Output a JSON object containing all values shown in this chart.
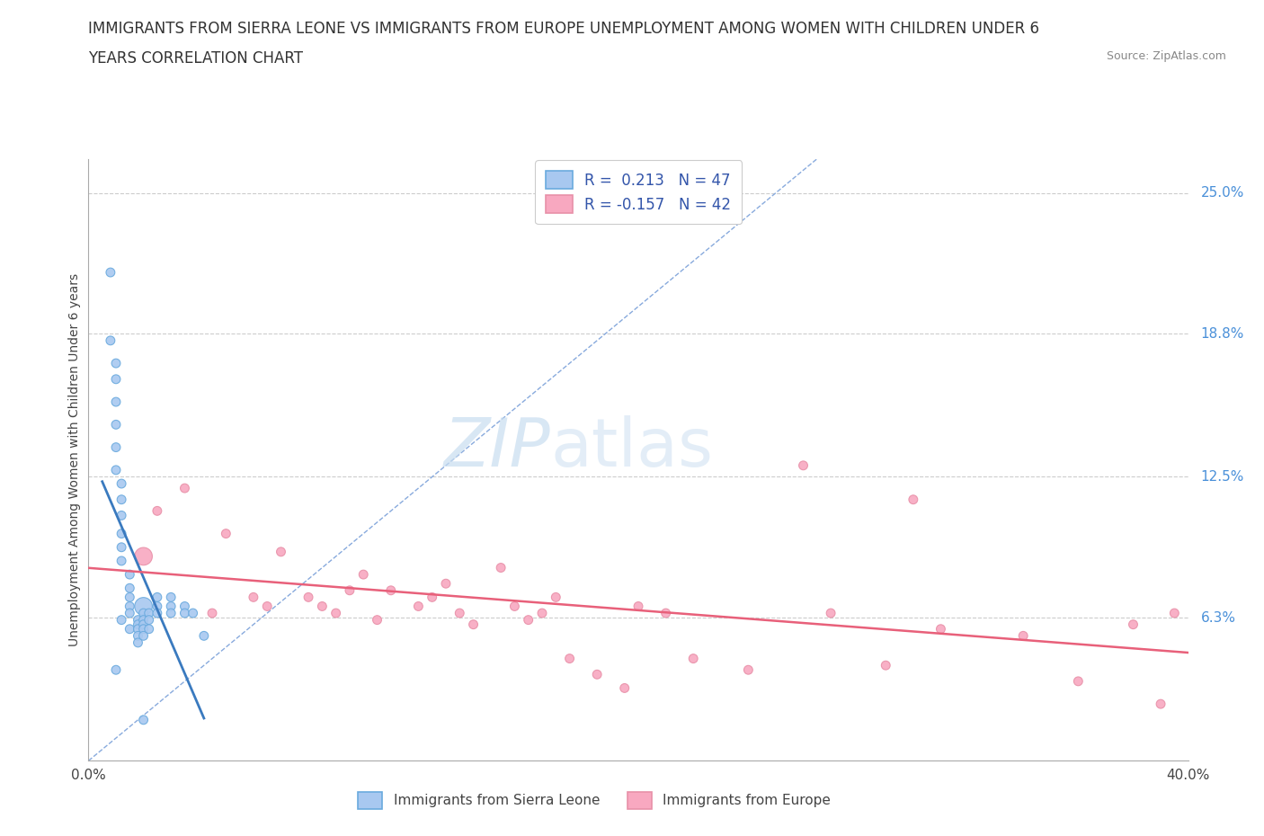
{
  "title_line1": "IMMIGRANTS FROM SIERRA LEONE VS IMMIGRANTS FROM EUROPE UNEMPLOYMENT AMONG WOMEN WITH CHILDREN UNDER 6",
  "title_line2": "YEARS CORRELATION CHART",
  "source_text": "Source: ZipAtlas.com",
  "ylabel": "Unemployment Among Women with Children Under 6 years",
  "xlim": [
    0.0,
    0.4
  ],
  "ylim": [
    0.0,
    0.265
  ],
  "ytick_labels_right": [
    "25.0%",
    "18.8%",
    "12.5%",
    "6.3%"
  ],
  "ytick_vals_right": [
    0.25,
    0.188,
    0.125,
    0.063
  ],
  "watermark_zip": "ZIP",
  "watermark_atlas": "atlas",
  "legend_R1": "R =  0.213   N = 47",
  "legend_R2": "R = -0.157   N = 42",
  "color_sl": "#a8c8f0",
  "color_eu": "#f8a8c0",
  "edge_sl": "#6aaade",
  "edge_eu": "#e890a8",
  "line_sl_color": "#3a7abf",
  "line_eu_color": "#e8607a",
  "diagonal_color": "#88aadd",
  "sl_x": [
    0.008,
    0.008,
    0.01,
    0.01,
    0.01,
    0.01,
    0.01,
    0.01,
    0.01,
    0.012,
    0.012,
    0.012,
    0.012,
    0.012,
    0.012,
    0.012,
    0.015,
    0.015,
    0.015,
    0.015,
    0.015,
    0.015,
    0.018,
    0.018,
    0.018,
    0.018,
    0.018,
    0.02,
    0.02,
    0.02,
    0.02,
    0.02,
    0.02,
    0.02,
    0.022,
    0.022,
    0.022,
    0.025,
    0.025,
    0.025,
    0.03,
    0.03,
    0.03,
    0.035,
    0.035,
    0.038,
    0.042
  ],
  "sl_y": [
    0.215,
    0.185,
    0.175,
    0.168,
    0.158,
    0.148,
    0.138,
    0.128,
    0.04,
    0.122,
    0.115,
    0.108,
    0.1,
    0.094,
    0.088,
    0.062,
    0.082,
    0.076,
    0.072,
    0.068,
    0.065,
    0.058,
    0.062,
    0.06,
    0.058,
    0.055,
    0.052,
    0.068,
    0.065,
    0.062,
    0.06,
    0.058,
    0.055,
    0.018,
    0.065,
    0.062,
    0.058,
    0.072,
    0.068,
    0.065,
    0.072,
    0.068,
    0.065,
    0.068,
    0.065,
    0.065,
    0.055
  ],
  "sl_sizes": [
    50,
    50,
    50,
    50,
    50,
    50,
    50,
    50,
    50,
    50,
    50,
    50,
    50,
    50,
    50,
    50,
    50,
    50,
    50,
    50,
    50,
    50,
    50,
    50,
    50,
    50,
    50,
    200,
    50,
    50,
    50,
    50,
    50,
    50,
    50,
    50,
    50,
    50,
    50,
    50,
    50,
    50,
    50,
    50,
    50,
    50,
    50
  ],
  "eu_x": [
    0.02,
    0.025,
    0.035,
    0.045,
    0.05,
    0.06,
    0.065,
    0.07,
    0.08,
    0.085,
    0.09,
    0.095,
    0.1,
    0.105,
    0.11,
    0.12,
    0.125,
    0.13,
    0.135,
    0.14,
    0.15,
    0.155,
    0.16,
    0.165,
    0.17,
    0.175,
    0.185,
    0.195,
    0.2,
    0.21,
    0.22,
    0.24,
    0.26,
    0.27,
    0.29,
    0.3,
    0.31,
    0.34,
    0.36,
    0.38,
    0.39,
    0.395
  ],
  "eu_y": [
    0.09,
    0.11,
    0.12,
    0.065,
    0.1,
    0.072,
    0.068,
    0.092,
    0.072,
    0.068,
    0.065,
    0.075,
    0.082,
    0.062,
    0.075,
    0.068,
    0.072,
    0.078,
    0.065,
    0.06,
    0.085,
    0.068,
    0.062,
    0.065,
    0.072,
    0.045,
    0.038,
    0.032,
    0.068,
    0.065,
    0.045,
    0.04,
    0.13,
    0.065,
    0.042,
    0.115,
    0.058,
    0.055,
    0.035,
    0.06,
    0.025,
    0.065
  ],
  "eu_sizes": [
    200,
    50,
    50,
    50,
    50,
    50,
    50,
    50,
    50,
    50,
    50,
    50,
    50,
    50,
    50,
    50,
    50,
    50,
    50,
    50,
    50,
    50,
    50,
    50,
    50,
    50,
    50,
    50,
    50,
    50,
    50,
    50,
    50,
    50,
    50,
    50,
    50,
    50,
    50,
    50,
    50,
    50
  ],
  "background_color": "#ffffff",
  "grid_color": "#cccccc"
}
